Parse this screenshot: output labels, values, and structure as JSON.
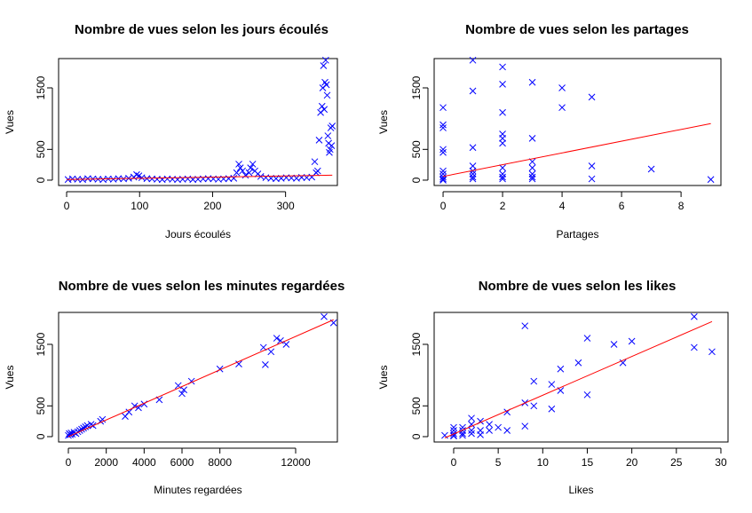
{
  "chart_data": [
    {
      "type": "scatter",
      "title": "Nombre de vues selon les jours écoulés",
      "xlabel": "Jours écoulés",
      "ylabel": "Vues",
      "xlim": [
        -11,
        371
      ],
      "ylim": [
        -87,
        1976
      ],
      "xticks": [
        0,
        100,
        200,
        300
      ],
      "yticks": [
        0,
        500,
        1500
      ],
      "series": [
        {
          "type": "scatter",
          "color": "#0000ff",
          "x": [
            2,
            8,
            15,
            22,
            29,
            36,
            43,
            50,
            57,
            64,
            71,
            78,
            85,
            92,
            96,
            99,
            103,
            110,
            117,
            124,
            131,
            138,
            145,
            152,
            159,
            166,
            173,
            180,
            187,
            194,
            201,
            208,
            215,
            222,
            229,
            233,
            236,
            238,
            241,
            245,
            250,
            252,
            255,
            258,
            262,
            266,
            273,
            280,
            287,
            294,
            301,
            308,
            315,
            322,
            329,
            336,
            340,
            342,
            344,
            346,
            348,
            350,
            351,
            352,
            353,
            354,
            355,
            356,
            357,
            358,
            359,
            360,
            361,
            362,
            363,
            364
          ],
          "values": [
            10,
            20,
            15,
            10,
            25,
            20,
            15,
            10,
            20,
            15,
            25,
            20,
            30,
            50,
            90,
            70,
            40,
            25,
            20,
            15,
            10,
            20,
            15,
            10,
            15,
            20,
            10,
            15,
            20,
            25,
            20,
            15,
            20,
            25,
            30,
            120,
            260,
            200,
            150,
            80,
            120,
            200,
            260,
            150,
            100,
            60,
            40,
            30,
            25,
            30,
            40,
            35,
            30,
            45,
            40,
            50,
            300,
            120,
            150,
            650,
            1100,
            1200,
            1500,
            1860,
            1150,
            1590,
            1950,
            1550,
            1380,
            720,
            600,
            450,
            500,
            850,
            560,
            880
          ]
        },
        {
          "type": "line",
          "color": "#ff0000",
          "x": [
            0,
            364
          ],
          "values": [
            10,
            80
          ]
        }
      ]
    },
    {
      "type": "scatter",
      "title": "Nombre de vues selon les partages",
      "xlabel": "Partages",
      "ylabel": "Vues",
      "xlim": [
        -0.3,
        9.34
      ],
      "ylim": [
        -87,
        1976
      ],
      "xticks": [
        0,
        2,
        4,
        6,
        8
      ],
      "yticks": [
        0,
        500,
        1500
      ],
      "series": [
        {
          "type": "scatter",
          "color": "#0000ff",
          "x": [
            0,
            0,
            0,
            0,
            0,
            0,
            0,
            0,
            0,
            0,
            1,
            1,
            1,
            1,
            1,
            1,
            1,
            1,
            2,
            2,
            2,
            2,
            2,
            2,
            2,
            2,
            2,
            2,
            3,
            3,
            3,
            3,
            3,
            3,
            3,
            4,
            4,
            5,
            5,
            5,
            7,
            9
          ],
          "values": [
            1180,
            900,
            850,
            500,
            450,
            150,
            100,
            50,
            20,
            0,
            1950,
            1450,
            530,
            230,
            150,
            100,
            50,
            20,
            1840,
            1560,
            1100,
            750,
            680,
            600,
            200,
            100,
            50,
            20,
            1590,
            680,
            300,
            200,
            100,
            50,
            20,
            1500,
            1180,
            1350,
            230,
            20,
            180,
            10
          ]
        },
        {
          "type": "line",
          "color": "#ff0000",
          "x": [
            0,
            9
          ],
          "values": [
            60,
            920
          ]
        }
      ]
    },
    {
      "type": "scatter",
      "title": "Nombre de vues selon les minutes regardées",
      "xlabel": "Minutes regardées",
      "ylabel": "Vues",
      "xlim": [
        -516,
        14203
      ],
      "ylim": [
        -87,
        2019
      ],
      "xticks": [
        0,
        2000,
        4000,
        6000,
        8000,
        12000
      ],
      "yticks": [
        0,
        500,
        1500
      ],
      "series": [
        {
          "type": "scatter",
          "color": "#0000ff",
          "x": [
            0,
            50,
            100,
            150,
            200,
            300,
            400,
            500,
            600,
            700,
            800,
            900,
            1000,
            1200,
            1300,
            1700,
            1800,
            3000,
            3200,
            3500,
            3700,
            4000,
            4800,
            5800,
            6000,
            6100,
            6500,
            8000,
            9000,
            10300,
            10400,
            10700,
            11000,
            11200,
            11500,
            13500,
            14000
          ],
          "values": [
            20,
            50,
            30,
            60,
            40,
            70,
            50,
            80,
            100,
            120,
            140,
            160,
            180,
            200,
            180,
            250,
            280,
            330,
            400,
            500,
            470,
            530,
            600,
            830,
            700,
            760,
            900,
            1100,
            1180,
            1450,
            1170,
            1380,
            1600,
            1560,
            1500,
            1950,
            1850
          ]
        },
        {
          "type": "line",
          "color": "#ff0000",
          "x": [
            0,
            14000
          ],
          "values": [
            0,
            1900
          ]
        }
      ]
    },
    {
      "type": "scatter",
      "title": "Nombre de vues selon les likes",
      "xlabel": "Likes",
      "ylabel": "Vues",
      "xlim": [
        -2.19,
        30.8
      ],
      "ylim": [
        -87,
        2019
      ],
      "xticks": [
        0,
        5,
        10,
        15,
        20,
        25,
        30
      ],
      "yticks": [
        0,
        500,
        1500
      ],
      "series": [
        {
          "type": "scatter",
          "color": "#0000ff",
          "x": [
            -1,
            0,
            0,
            0,
            0,
            0,
            1,
            1,
            1,
            1,
            2,
            2,
            2,
            2,
            3,
            3,
            3,
            4,
            4,
            5,
            6,
            6,
            8,
            8,
            8,
            9,
            9,
            11,
            11,
            12,
            12,
            14,
            15,
            15,
            18,
            19,
            20,
            27,
            27,
            29
          ],
          "values": [
            20,
            150,
            100,
            50,
            20,
            10,
            150,
            100,
            50,
            20,
            300,
            200,
            100,
            50,
            250,
            100,
            30,
            200,
            100,
            150,
            400,
            100,
            1800,
            550,
            170,
            900,
            500,
            850,
            450,
            1100,
            750,
            1200,
            1600,
            680,
            1500,
            1200,
            1550,
            1950,
            1450,
            1380
          ]
        },
        {
          "type": "line",
          "color": "#ff0000",
          "x": [
            -1,
            29
          ],
          "values": [
            -20,
            1870
          ]
        }
      ]
    }
  ]
}
